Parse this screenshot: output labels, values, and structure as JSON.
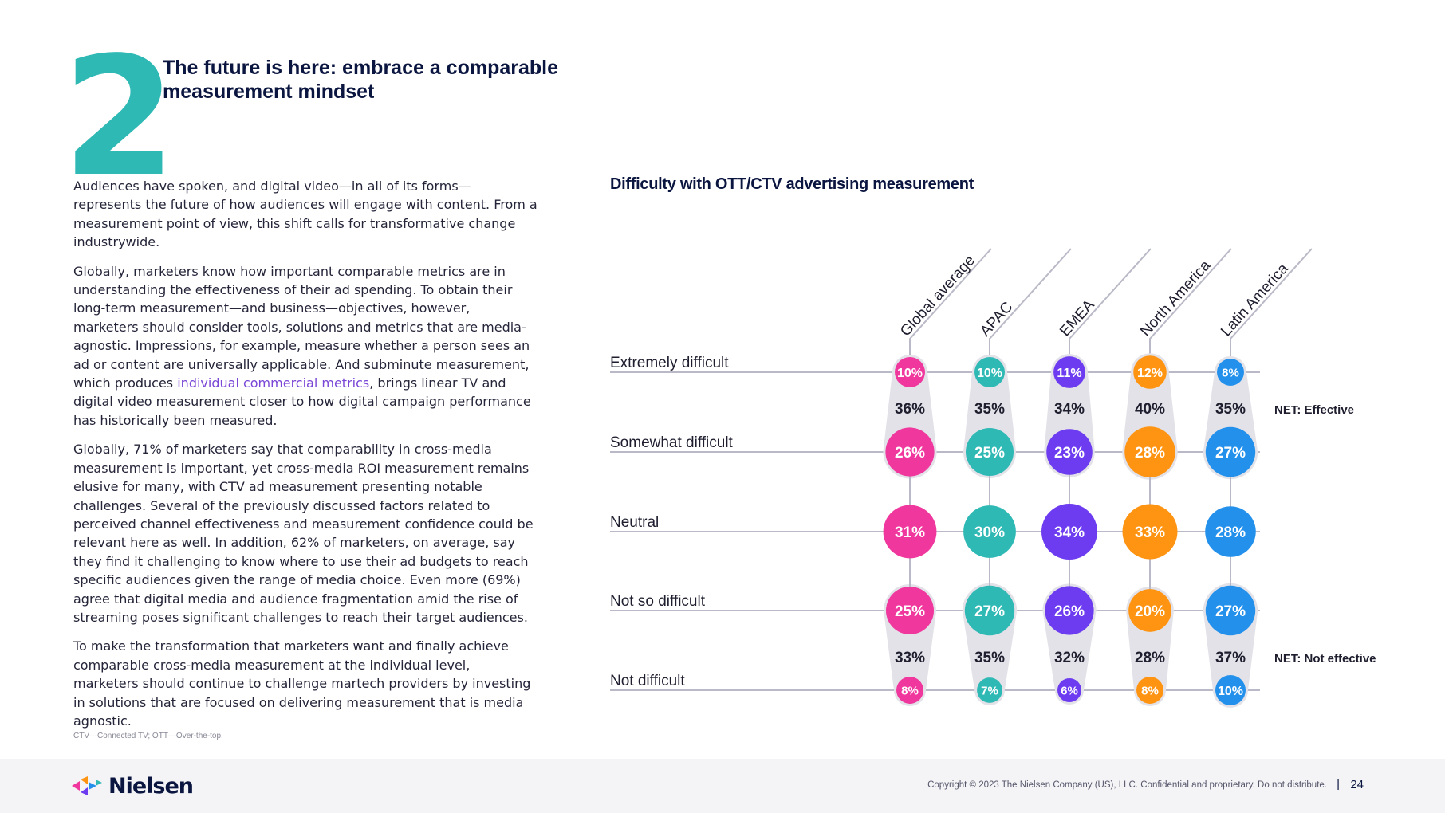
{
  "section": {
    "number": "2",
    "title": "The future is here: embrace a comparable measurement mindset"
  },
  "body": {
    "p1": "Audiences have spoken, and digital video—in all of its forms—represents the future of how audiences will engage with content. From a measurement point of view, this shift calls for transformative change industrywide.",
    "p2_a": "Globally, marketers know how important comparable metrics are in understanding the effectiveness of their ad spending. To obtain their long-term measurement—and business—objectives, however, marketers should consider tools, solutions and metrics that are media-agnostic. Impressions, for example, measure whether a person sees an ad or content are universally applicable. And subminute measurement, which produces ",
    "p2_link": "individual commercial metrics",
    "p2_b": ", brings linear TV and digital video measurement closer to how digital campaign performance has historically been measured.",
    "p3": "Globally, 71% of marketers say that comparability in cross-media measurement is important, yet cross-media ROI measurement remains elusive for many, with CTV ad measurement presenting notable challenges. Several of the previously discussed factors related to perceived channel effectiveness and measurement confidence could be relevant here as well. In addition, 62% of marketers, on average, say they find it challenging to know where to use their ad budgets to reach specific audiences given the range of media choice. Even more (69%) agree that digital media and audience fragmentation amid the rise of streaming poses significant challenges to reach their target audiences.",
    "p4": "To make the transformation that marketers want and finally achieve comparable cross-media measurement at the individual level, marketers should continue to challenge martech providers by investing in solutions that are focused on delivering measurement that is media agnostic.",
    "footnote": "CTV—Connected TV; OTT—Over-the-top."
  },
  "chart_data": {
    "type": "bubble-matrix",
    "title": "Difficulty with OTT/CTV advertising measurement",
    "categories": [
      "Extremely difficult",
      "Somewhat difficult",
      "Neutral",
      "Not so difficult",
      "Not difficult"
    ],
    "series": [
      {
        "name": "Global average",
        "color": "#f0379d",
        "values": [
          10,
          26,
          31,
          25,
          8
        ],
        "net_effective": 36,
        "net_not_effective": 33
      },
      {
        "name": "APAC",
        "color": "#2fb9b5",
        "values": [
          10,
          25,
          30,
          27,
          7
        ],
        "net_effective": 35,
        "net_not_effective": 35
      },
      {
        "name": "EMEA",
        "color": "#6e3cf0",
        "values": [
          11,
          23,
          34,
          26,
          6
        ],
        "net_effective": 34,
        "net_not_effective": 32
      },
      {
        "name": "North America",
        "color": "#ff9413",
        "values": [
          12,
          28,
          33,
          20,
          8
        ],
        "net_effective": 40,
        "net_not_effective": 28
      },
      {
        "name": "Latin America",
        "color": "#2391ec",
        "values": [
          8,
          27,
          28,
          27,
          10
        ],
        "net_effective": 35,
        "net_not_effective": 37
      }
    ],
    "net_labels": {
      "effective": "NET: Effective",
      "not_effective": "NET: Not effective"
    },
    "unit": "%"
  },
  "footer": {
    "logo": "Nielsen",
    "copyright": "Copyright © 2023 The Nielsen Company (US), LLC. Confidential and proprietary. Do not distribute.",
    "separator": "|",
    "page": "24"
  }
}
